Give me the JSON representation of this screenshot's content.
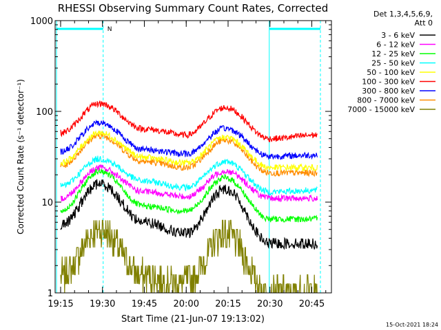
{
  "chart_data": {
    "type": "line",
    "title": "RHESSI Observing Summary Count Rates, Corrected",
    "xlabel": "Start Time (21-Jun-07 19:13:02)",
    "ylabel": "Corrected Count Rate (s⁻¹ detector⁻¹)",
    "x_ticks": [
      "19:15",
      "19:30",
      "19:45",
      "20:00",
      "20:15",
      "20:30",
      "20:45"
    ],
    "y_ticks": [
      "1",
      "10",
      "100",
      "1000"
    ],
    "ylim": [
      1,
      1000
    ],
    "yscale": "log",
    "grid": false,
    "legend_position": "top-right",
    "legend_header": [
      "Det 1,3,4,5,6,9,",
      "Att 0"
    ],
    "flags": [
      {
        "label": "N",
        "color": "#00ffff"
      }
    ],
    "timestamp": "15-Oct-2021 18:24",
    "peaks": [
      "19:29",
      "20:14"
    ],
    "series": [
      {
        "name": "3 - 6 keV",
        "color": "#000000",
        "values": {
          "19:15": 5.5,
          "19:29": 16,
          "19:45": 6,
          "20:00": 4.5,
          "20:14": 14,
          "20:30": 3.5,
          "20:47": 3.5
        }
      },
      {
        "name": "6 - 12 keV",
        "color": "#ff00ff",
        "values": {
          "19:15": 11,
          "19:29": 24,
          "19:45": 13,
          "20:00": 11.5,
          "20:14": 22,
          "20:30": 11,
          "20:47": 11
        }
      },
      {
        "name": "12 - 25 keV",
        "color": "#00ff00",
        "values": {
          "19:15": 8,
          "19:29": 22,
          "19:45": 9,
          "20:00": 8,
          "20:14": 18.5,
          "20:30": 6.5,
          "20:47": 6.5
        }
      },
      {
        "name": "25 - 50 keV",
        "color": "#00ffff",
        "values": {
          "19:15": 15,
          "19:29": 30,
          "19:45": 17,
          "20:00": 14.5,
          "20:14": 28,
          "20:30": 13,
          "20:47": 13.5
        }
      },
      {
        "name": "50 - 100 keV",
        "color": "#ffff00",
        "values": {
          "19:15": 27,
          "19:29": 58,
          "19:45": 31,
          "20:00": 27,
          "20:14": 52,
          "20:30": 24,
          "20:47": 24
        }
      },
      {
        "name": "100 - 300 keV",
        "color": "#ff0000",
        "values": {
          "19:15": 58,
          "19:29": 122,
          "19:45": 64,
          "20:00": 55,
          "20:14": 110,
          "20:30": 50,
          "20:47": 55
        }
      },
      {
        "name": "300 - 800 keV",
        "color": "#0000ff",
        "values": {
          "19:15": 36,
          "19:29": 75,
          "19:45": 38,
          "20:00": 34,
          "20:14": 65,
          "20:30": 32,
          "20:47": 33
        }
      },
      {
        "name": "800 - 7000 keV",
        "color": "#ff8c00",
        "values": {
          "19:15": 25,
          "19:29": 54,
          "19:45": 28,
          "20:00": 24,
          "20:14": 48,
          "20:30": 21,
          "20:47": 21
        }
      },
      {
        "name": "7000 - 15000 keV",
        "color": "#808000",
        "values": {
          "19:15": 1.5,
          "19:29": 5,
          "19:45": 1.5,
          "20:00": 1.3,
          "20:14": 4.5,
          "20:30": 1,
          "20:47": 1
        }
      }
    ]
  }
}
